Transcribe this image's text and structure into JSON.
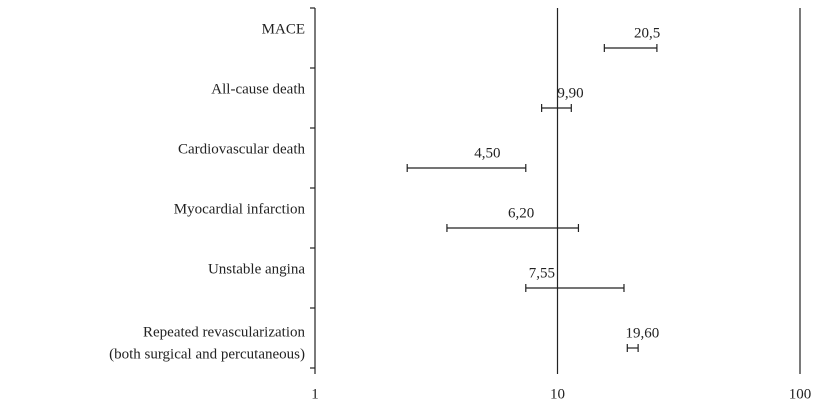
{
  "chart_data": {
    "type": "forest",
    "categories": [
      "MACE",
      "All-cause death",
      "Cardiovascular death",
      "Myocardial infarction",
      "Unstable angina",
      [
        "Repeated revascularization",
        "(both surgical and percutaneous)"
      ]
    ],
    "values": [
      20.5,
      9.9,
      4.5,
      6.2,
      7.55,
      19.6
    ],
    "value_labels": [
      "20,5",
      "9,90",
      "4,50",
      "6,20",
      "7,55",
      "19,60"
    ],
    "ci_low": [
      15.6,
      8.6,
      2.4,
      3.5,
      7.4,
      19.4
    ],
    "ci_high": [
      25.7,
      11.4,
      7.4,
      12.2,
      18.8,
      21.5
    ],
    "xlim": [
      1,
      100
    ],
    "xticks": [
      1,
      10,
      100
    ],
    "log_x": true,
    "reference": 10,
    "color": "#222222"
  }
}
